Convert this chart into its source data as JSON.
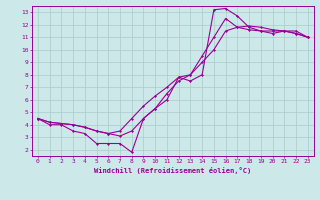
{
  "xlabel": "Windchill (Refroidissement éolien,°C)",
  "ylabel": "",
  "bg_color": "#cce8e8",
  "line_color": "#990099",
  "grid_color": "#aacccc",
  "xlim": [
    -0.5,
    23.5
  ],
  "ylim": [
    1.5,
    13.5
  ],
  "xticks": [
    0,
    1,
    2,
    3,
    4,
    5,
    6,
    7,
    8,
    9,
    10,
    11,
    12,
    13,
    14,
    15,
    16,
    17,
    18,
    19,
    20,
    21,
    22,
    23
  ],
  "yticks": [
    2,
    3,
    4,
    5,
    6,
    7,
    8,
    9,
    10,
    11,
    12,
    13
  ],
  "line1_x": [
    0,
    1,
    2,
    3,
    4,
    5,
    6,
    7,
    8,
    9,
    10,
    11,
    12,
    13,
    14,
    15,
    16,
    17,
    18,
    19,
    20,
    21,
    22,
    23
  ],
  "line1_y": [
    4.5,
    4.0,
    4.0,
    3.5,
    3.3,
    2.5,
    2.5,
    2.5,
    1.8,
    4.5,
    5.3,
    6.0,
    7.8,
    7.5,
    8.0,
    13.2,
    13.3,
    12.7,
    11.8,
    11.5,
    11.3,
    11.5,
    11.5,
    11.0
  ],
  "line2_x": [
    0,
    1,
    2,
    3,
    4,
    5,
    6,
    7,
    8,
    9,
    10,
    11,
    12,
    13,
    14,
    15,
    16,
    17,
    18,
    19,
    20,
    21,
    22,
    23
  ],
  "line2_y": [
    4.5,
    4.2,
    4.1,
    4.0,
    3.8,
    3.5,
    3.3,
    3.1,
    3.5,
    4.5,
    5.3,
    6.5,
    7.5,
    8.0,
    9.0,
    10.0,
    11.5,
    11.8,
    11.9,
    11.8,
    11.6,
    11.5,
    11.3,
    11.0
  ],
  "line3_x": [
    0,
    1,
    2,
    3,
    4,
    5,
    6,
    7,
    8,
    9,
    10,
    11,
    12,
    13,
    14,
    15,
    16,
    17,
    18,
    19,
    20,
    21,
    22,
    23
  ],
  "line3_y": [
    4.5,
    4.2,
    4.1,
    4.0,
    3.8,
    3.5,
    3.3,
    3.5,
    4.5,
    5.5,
    6.3,
    7.0,
    7.8,
    8.0,
    9.5,
    11.0,
    12.5,
    11.8,
    11.6,
    11.5,
    11.5,
    11.5,
    11.3,
    11.0
  ]
}
